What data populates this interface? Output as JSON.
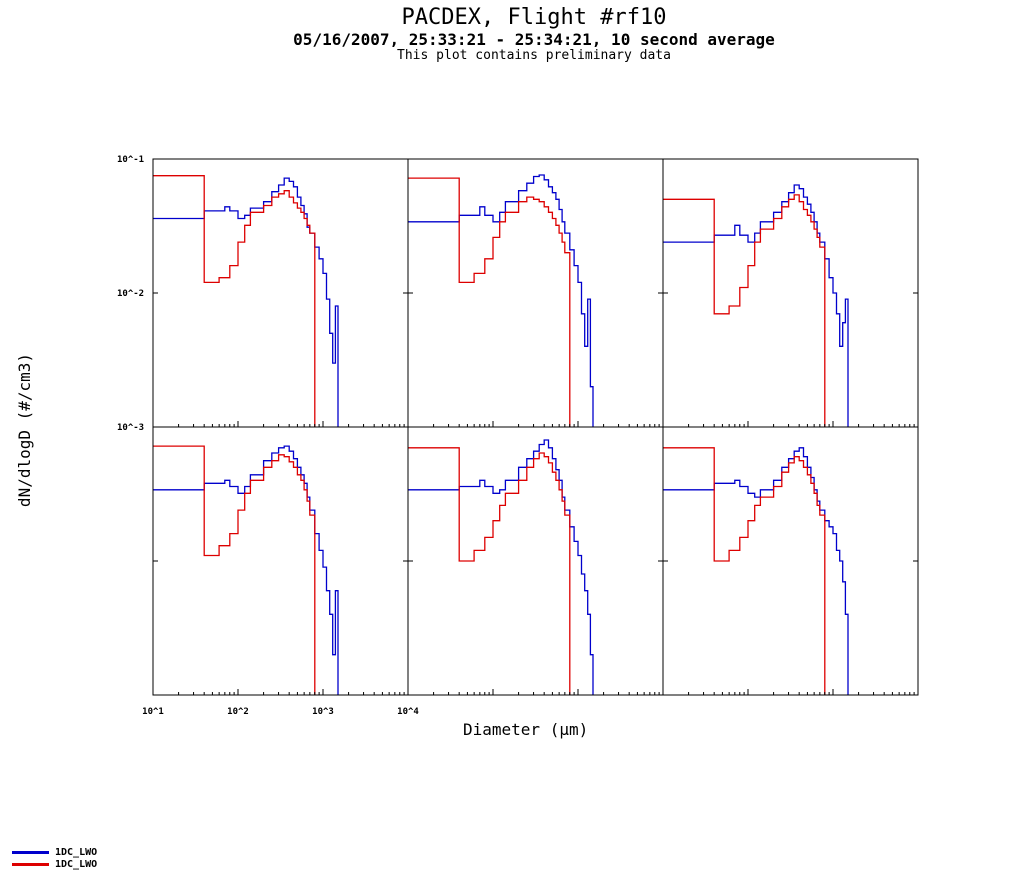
{
  "header": {
    "title": "PACDEX, Flight #rf10",
    "subtitle": "05/16/2007, 25:33:21 - 25:34:21, 10 second average",
    "note": "This plot contains preliminary data"
  },
  "colors": {
    "series_a": "#0000cc",
    "series_b": "#dd0000",
    "axis": "#000000"
  },
  "chart_data": {
    "type": "line",
    "xlabel": "Diameter (µm)",
    "ylabel": "dN/dlogD (#/cm3)",
    "x_scale": "log",
    "y_scale": "log",
    "xlim": [
      10,
      10000
    ],
    "ylim": [
      0.001,
      0.1
    ],
    "x_tick_labels": [
      "10^1",
      "10^2",
      "10^3",
      "10^4"
    ],
    "y_tick_labels": [
      "10^-1",
      "10^-2",
      "10^-3"
    ],
    "grid": false,
    "legend_position": "bottom-left",
    "legend": [
      "1DC_LWO",
      "1DC_LWO"
    ],
    "panels": [
      {
        "series": [
          {
            "legend_index": 0,
            "x": [
              10,
              40,
              70,
              80,
              100,
              120,
              140,
              200,
              250,
              300,
              350,
              400,
              450,
              500,
              550,
              600,
              650,
              700,
              800,
              900,
              1000,
              1100,
              1200,
              1300,
              1400,
              1500
            ],
            "y": [
              0.036,
              0.041,
              0.044,
              0.041,
              0.036,
              0.038,
              0.043,
              0.048,
              0.057,
              0.064,
              0.072,
              0.068,
              0.062,
              0.052,
              0.045,
              0.039,
              0.031,
              0.028,
              0.022,
              0.018,
              0.014,
              0.009,
              0.005,
              0.003,
              0.008,
              0.001
            ]
          },
          {
            "legend_index": 1,
            "x": [
              10,
              40,
              60,
              80,
              100,
              120,
              140,
              200,
              250,
              300,
              350,
              400,
              450,
              500,
              550,
              600,
              650,
              700,
              800
            ],
            "y": [
              0.075,
              0.012,
              0.013,
              0.016,
              0.024,
              0.032,
              0.04,
              0.045,
              0.052,
              0.055,
              0.058,
              0.052,
              0.047,
              0.043,
              0.04,
              0.036,
              0.032,
              0.028,
              0.001
            ]
          }
        ]
      },
      {
        "series": [
          {
            "legend_index": 0,
            "x": [
              10,
              40,
              70,
              80,
              100,
              120,
              140,
              200,
              250,
              300,
              350,
              400,
              450,
              500,
              550,
              600,
              650,
              700,
              800,
              900,
              1000,
              1100,
              1200,
              1300,
              1400,
              1500
            ],
            "y": [
              0.034,
              0.038,
              0.044,
              0.038,
              0.034,
              0.04,
              0.048,
              0.058,
              0.066,
              0.074,
              0.076,
              0.07,
              0.062,
              0.056,
              0.05,
              0.042,
              0.034,
              0.028,
              0.021,
              0.016,
              0.012,
              0.007,
              0.004,
              0.009,
              0.002,
              0.001
            ]
          },
          {
            "legend_index": 1,
            "x": [
              10,
              40,
              60,
              80,
              100,
              120,
              140,
              200,
              250,
              300,
              350,
              400,
              450,
              500,
              550,
              600,
              650,
              700,
              800
            ],
            "y": [
              0.072,
              0.012,
              0.014,
              0.018,
              0.026,
              0.034,
              0.04,
              0.048,
              0.052,
              0.05,
              0.048,
              0.044,
              0.04,
              0.036,
              0.032,
              0.028,
              0.024,
              0.02,
              0.001
            ]
          }
        ]
      },
      {
        "series": [
          {
            "legend_index": 0,
            "x": [
              10,
              40,
              70,
              80,
              100,
              120,
              140,
              200,
              250,
              300,
              350,
              400,
              450,
              500,
              550,
              600,
              650,
              700,
              800,
              900,
              1000,
              1100,
              1200,
              1300,
              1400,
              1500
            ],
            "y": [
              0.024,
              0.027,
              0.032,
              0.027,
              0.024,
              0.028,
              0.034,
              0.04,
              0.048,
              0.056,
              0.064,
              0.06,
              0.052,
              0.046,
              0.04,
              0.034,
              0.028,
              0.024,
              0.018,
              0.013,
              0.01,
              0.007,
              0.004,
              0.006,
              0.009,
              0.001
            ]
          },
          {
            "legend_index": 1,
            "x": [
              10,
              40,
              60,
              80,
              100,
              120,
              140,
              200,
              250,
              300,
              350,
              400,
              450,
              500,
              550,
              600,
              650,
              700,
              800
            ],
            "y": [
              0.05,
              0.007,
              0.008,
              0.011,
              0.016,
              0.024,
              0.03,
              0.036,
              0.044,
              0.05,
              0.054,
              0.048,
              0.042,
              0.038,
              0.034,
              0.03,
              0.026,
              0.022,
              0.001
            ]
          }
        ]
      },
      {
        "series": [
          {
            "legend_index": 0,
            "x": [
              10,
              40,
              70,
              80,
              100,
              120,
              140,
              200,
              250,
              300,
              350,
              400,
              450,
              500,
              550,
              600,
              650,
              700,
              800,
              900,
              1000,
              1100,
              1200,
              1300,
              1400,
              1500
            ],
            "y": [
              0.034,
              0.038,
              0.04,
              0.036,
              0.032,
              0.036,
              0.044,
              0.056,
              0.064,
              0.07,
              0.072,
              0.066,
              0.058,
              0.05,
              0.044,
              0.038,
              0.03,
              0.024,
              0.016,
              0.012,
              0.009,
              0.006,
              0.004,
              0.002,
              0.006,
              0.001
            ]
          },
          {
            "legend_index": 1,
            "x": [
              10,
              40,
              60,
              80,
              100,
              120,
              140,
              200,
              250,
              300,
              350,
              400,
              450,
              500,
              550,
              600,
              650,
              700,
              800
            ],
            "y": [
              0.072,
              0.011,
              0.013,
              0.016,
              0.024,
              0.032,
              0.04,
              0.05,
              0.056,
              0.062,
              0.06,
              0.055,
              0.05,
              0.044,
              0.04,
              0.034,
              0.028,
              0.022,
              0.001
            ]
          }
        ]
      },
      {
        "series": [
          {
            "legend_index": 0,
            "x": [
              10,
              40,
              70,
              80,
              100,
              120,
              140,
              200,
              250,
              300,
              350,
              400,
              450,
              500,
              550,
              600,
              650,
              700,
              800,
              900,
              1000,
              1100,
              1200,
              1300,
              1400,
              1500
            ],
            "y": [
              0.034,
              0.036,
              0.04,
              0.036,
              0.032,
              0.034,
              0.04,
              0.05,
              0.058,
              0.066,
              0.074,
              0.08,
              0.07,
              0.058,
              0.048,
              0.04,
              0.03,
              0.024,
              0.018,
              0.014,
              0.011,
              0.008,
              0.006,
              0.004,
              0.002,
              0.001
            ]
          },
          {
            "legend_index": 1,
            "x": [
              10,
              40,
              60,
              80,
              100,
              120,
              140,
              200,
              250,
              300,
              350,
              400,
              450,
              500,
              550,
              600,
              650,
              700,
              800
            ],
            "y": [
              0.07,
              0.01,
              0.012,
              0.015,
              0.02,
              0.026,
              0.032,
              0.04,
              0.05,
              0.058,
              0.064,
              0.06,
              0.054,
              0.046,
              0.04,
              0.034,
              0.028,
              0.022,
              0.001
            ]
          }
        ]
      },
      {
        "series": [
          {
            "legend_index": 0,
            "x": [
              10,
              40,
              70,
              80,
              100,
              120,
              140,
              200,
              250,
              300,
              350,
              400,
              450,
              500,
              550,
              600,
              650,
              700,
              800,
              900,
              1000,
              1100,
              1200,
              1300,
              1400,
              1500
            ],
            "y": [
              0.034,
              0.038,
              0.04,
              0.036,
              0.032,
              0.03,
              0.034,
              0.04,
              0.05,
              0.058,
              0.066,
              0.07,
              0.06,
              0.05,
              0.042,
              0.034,
              0.028,
              0.024,
              0.02,
              0.018,
              0.016,
              0.012,
              0.01,
              0.007,
              0.004,
              0.001
            ]
          },
          {
            "legend_index": 1,
            "x": [
              10,
              40,
              60,
              80,
              100,
              120,
              140,
              200,
              250,
              300,
              350,
              400,
              450,
              500,
              550,
              600,
              650,
              700,
              800
            ],
            "y": [
              0.07,
              0.01,
              0.012,
              0.015,
              0.02,
              0.026,
              0.03,
              0.036,
              0.046,
              0.054,
              0.06,
              0.056,
              0.05,
              0.044,
              0.038,
              0.032,
              0.026,
              0.022,
              0.001
            ]
          }
        ]
      }
    ]
  }
}
